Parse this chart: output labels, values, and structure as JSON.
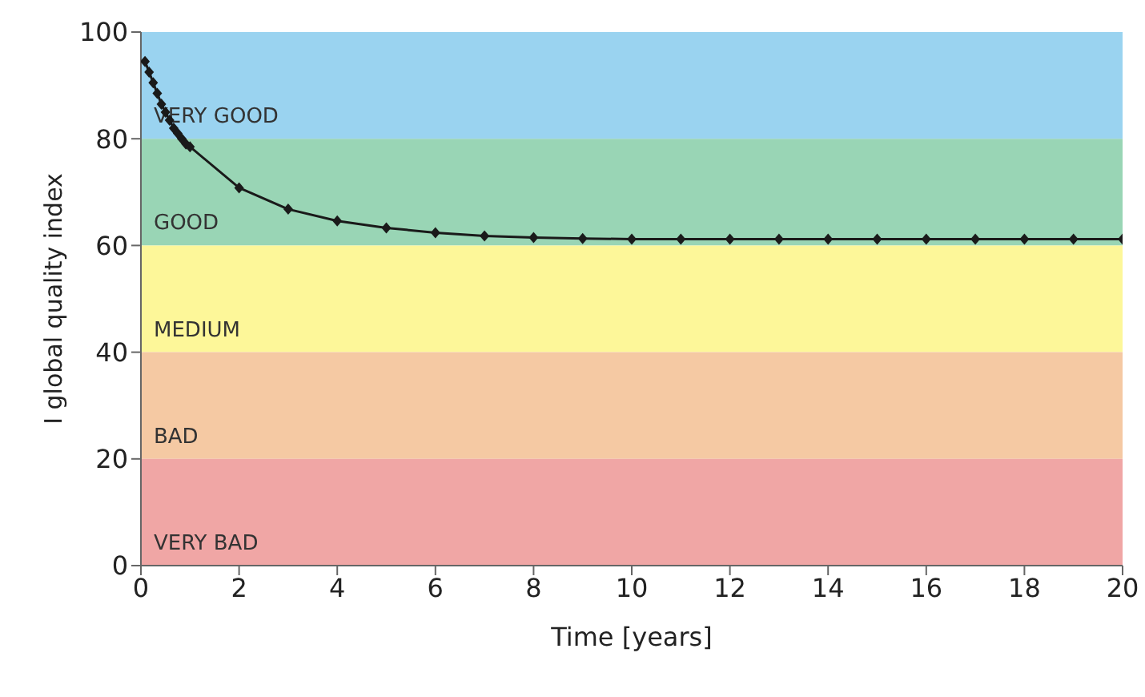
{
  "chart_data": {
    "type": "line",
    "xlabel": "Time [years]",
    "ylabel": "I global quality index",
    "x": [
      0.083,
      0.167,
      0.25,
      0.333,
      0.417,
      0.5,
      0.583,
      0.667,
      0.75,
      0.833,
      0.917,
      1,
      2,
      3,
      4,
      5,
      6,
      7,
      8,
      9,
      10,
      11,
      12,
      13,
      14,
      15,
      16,
      17,
      18,
      19,
      20
    ],
    "series": [
      {
        "color": "#1a1a1a",
        "values": [
          94.5,
          92.5,
          90.5,
          88.5,
          86.5,
          85,
          83.5,
          82,
          81,
          80,
          79,
          78.5,
          70.8,
          66.8,
          64.6,
          63.3,
          62.4,
          61.8,
          61.5,
          61.3,
          61.2,
          61.2,
          61.2,
          61.2,
          61.2,
          61.2,
          61.2,
          61.2,
          61.2,
          61.2,
          61.2
        ]
      }
    ],
    "xlim": [
      0,
      20
    ],
    "xticks": [
      0,
      2,
      4,
      6,
      8,
      10,
      12,
      14,
      16,
      18,
      20
    ],
    "ylim": [
      0,
      100
    ],
    "yticks": [
      0,
      20,
      40,
      60,
      80,
      100
    ],
    "marker": "diamond",
    "grid": false,
    "legend": false,
    "bands": [
      {
        "axis": "y",
        "from": 80,
        "to": 100,
        "label": "VERY GOOD",
        "color": "#9ad3f0"
      },
      {
        "axis": "y",
        "from": 60,
        "to": 80,
        "label": "GOOD",
        "color": "#99d5b5"
      },
      {
        "axis": "y",
        "from": 40,
        "to": 60,
        "label": "MEDIUM",
        "color": "#fdf799"
      },
      {
        "axis": "y",
        "from": 20,
        "to": 40,
        "label": "BAD",
        "color": "#f5c9a3"
      },
      {
        "axis": "y",
        "from": 0,
        "to": 20,
        "label": "VERY BAD",
        "color": "#f0a6a5"
      }
    ]
  }
}
